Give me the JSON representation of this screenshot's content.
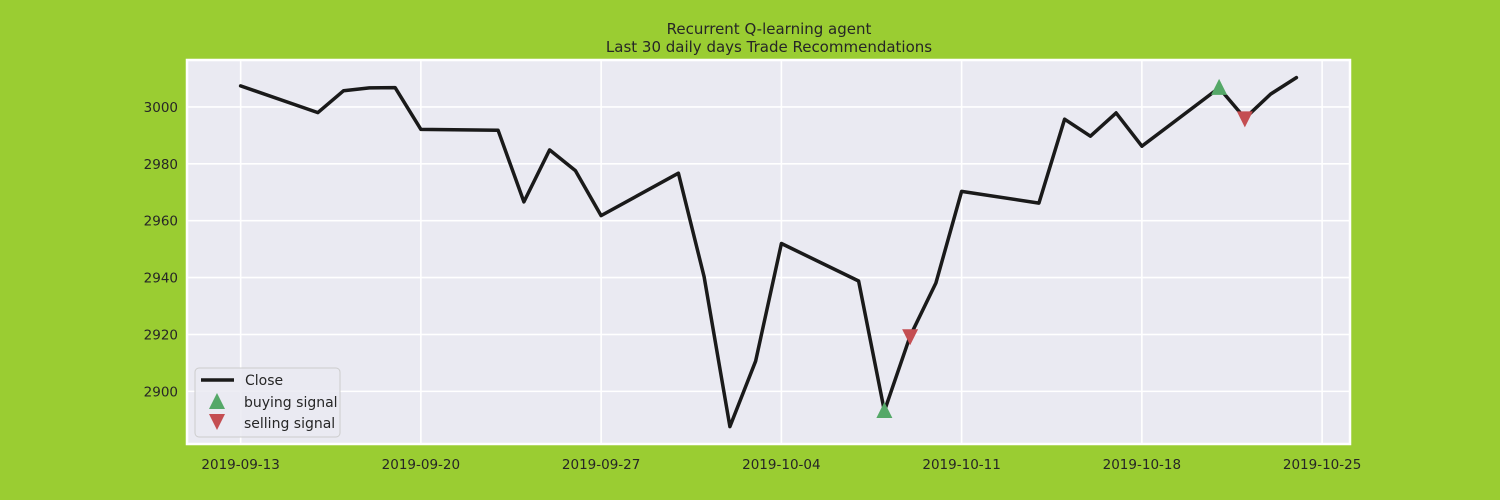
{
  "chart_data": {
    "type": "line",
    "title": "Recurrent Q-learning agent",
    "subtitle": "Last 30 daily days Trade Recommendations",
    "xlabel": "",
    "ylabel": "",
    "x": [
      "2019-09-13",
      "2019-09-16",
      "2019-09-17",
      "2019-09-18",
      "2019-09-19",
      "2019-09-20",
      "2019-09-23",
      "2019-09-24",
      "2019-09-25",
      "2019-09-26",
      "2019-09-27",
      "2019-09-30",
      "2019-10-01",
      "2019-10-02",
      "2019-10-03",
      "2019-10-04",
      "2019-10-07",
      "2019-10-08",
      "2019-10-09",
      "2019-10-10",
      "2019-10-11",
      "2019-10-14",
      "2019-10-15",
      "2019-10-16",
      "2019-10-17",
      "2019-10-18",
      "2019-10-21",
      "2019-10-22",
      "2019-10-23",
      "2019-10-24"
    ],
    "series": [
      {
        "name": "Close",
        "color": "#1a1a1a",
        "values": [
          3007.4,
          2998.0,
          3005.7,
          3006.7,
          3006.8,
          2992.1,
          2991.8,
          2966.6,
          2984.9,
          2977.6,
          2961.8,
          2976.7,
          2940.3,
          2887.6,
          2910.6,
          2952.0,
          2938.8,
          2893.1,
          2919.4,
          2938.1,
          2970.3,
          2966.2,
          2995.7,
          2989.7,
          2997.9,
          2986.2,
          3006.7,
          2995.99,
          3004.5,
          3010.3
        ]
      },
      {
        "name": "buying signal",
        "color": "#55a868",
        "marker": "triangle-up",
        "points": [
          {
            "x": "2019-10-08",
            "y": 2893.1
          },
          {
            "x": "2019-10-21",
            "y": 3006.7
          }
        ]
      },
      {
        "name": "selling signal",
        "color": "#c44e52",
        "marker": "triangle-down",
        "points": [
          {
            "x": "2019-10-09",
            "y": 2919.4
          },
          {
            "x": "2019-10-22",
            "y": 2995.99
          }
        ]
      }
    ],
    "x_ticks": [
      "2019-09-13",
      "2019-09-20",
      "2019-09-27",
      "2019-10-04",
      "2019-10-11",
      "2019-10-18",
      "2019-10-25"
    ],
    "y_ticks": [
      2900,
      2920,
      2940,
      2960,
      2980,
      3000
    ],
    "xlim": [
      "2019-09-10T22:00",
      "2019-10-26T02:00"
    ],
    "ylim": [
      2881.5,
      3016.5
    ],
    "grid": true,
    "legend_position": "lower-left",
    "colors": {
      "figure_background": "#9acd32",
      "plot_background": "#eaeaf2",
      "grid": "#ffffff"
    }
  }
}
